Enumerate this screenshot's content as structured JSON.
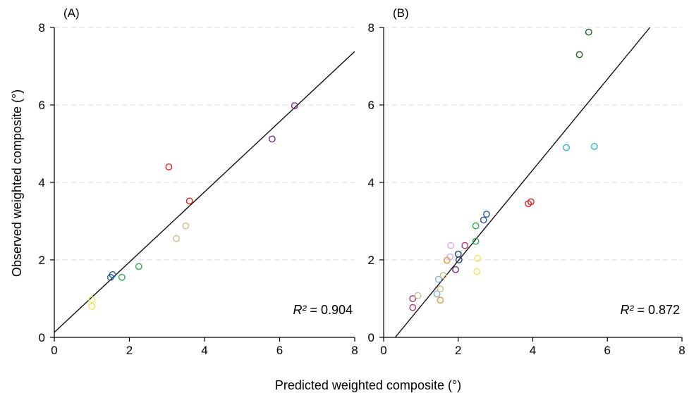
{
  "figure": {
    "xlabel": "Predicted weighted composite (°)",
    "ylabel": "Observed weighted composite (°)"
  },
  "chart_data": [
    {
      "type": "scatter",
      "panel_label": "(A)",
      "xlim": [
        0,
        8
      ],
      "ylim": [
        0,
        8
      ],
      "xticks": [
        0,
        2,
        4,
        6,
        8
      ],
      "yticks": [
        0,
        2,
        4,
        6,
        8
      ],
      "grid": "horizontal dashed",
      "annotation": {
        "prefix": "R²",
        "text": " = 0.904"
      },
      "fit_line": {
        "x": [
          0,
          8
        ],
        "y": [
          0.13,
          7.38
        ]
      },
      "points": [
        {
          "x": 1.0,
          "y": 0.97,
          "color": "#f2e35a"
        },
        {
          "x": 1.0,
          "y": 0.8,
          "color": "#f2e35a"
        },
        {
          "x": 1.5,
          "y": 1.55,
          "color": "#2a5aa8"
        },
        {
          "x": 1.55,
          "y": 1.62,
          "color": "#2a5aa8"
        },
        {
          "x": 1.8,
          "y": 1.55,
          "color": "#2ea84a"
        },
        {
          "x": 2.25,
          "y": 1.83,
          "color": "#2ea84a"
        },
        {
          "x": 3.05,
          "y": 4.4,
          "color": "#e02020"
        },
        {
          "x": 3.25,
          "y": 2.55,
          "color": "#c9c08a"
        },
        {
          "x": 3.5,
          "y": 2.88,
          "color": "#c9c08a"
        },
        {
          "x": 3.6,
          "y": 3.52,
          "color": "#e02020"
        },
        {
          "x": 5.8,
          "y": 5.12,
          "color": "#7b2a8e"
        },
        {
          "x": 6.4,
          "y": 5.98,
          "color": "#7b2a8e"
        }
      ]
    },
    {
      "type": "scatter",
      "panel_label": "(B)",
      "xlim": [
        0,
        8
      ],
      "ylim": [
        0,
        8
      ],
      "xticks": [
        0,
        2,
        4,
        6,
        8
      ],
      "yticks": [
        0,
        2,
        4,
        6,
        8
      ],
      "grid": "horizontal dashed",
      "annotation": {
        "prefix": "R²",
        "text": " = 0.872"
      },
      "fit_line": {
        "x": [
          0.31,
          7.14
        ],
        "y": [
          0,
          8
        ]
      },
      "points": [
        {
          "x": 0.78,
          "y": 1.0,
          "color": "#b0306a"
        },
        {
          "x": 0.78,
          "y": 0.77,
          "color": "#b0306a"
        },
        {
          "x": 0.92,
          "y": 1.08,
          "color": "#c9c08a"
        },
        {
          "x": 1.43,
          "y": 1.12,
          "color": "#7fb3e0"
        },
        {
          "x": 1.47,
          "y": 1.5,
          "color": "#7fb3e0"
        },
        {
          "x": 1.52,
          "y": 1.25,
          "color": "#c9c08a"
        },
        {
          "x": 1.52,
          "y": 0.96,
          "color": "#e8962a"
        },
        {
          "x": 1.6,
          "y": 1.6,
          "color": "#c9c08a"
        },
        {
          "x": 1.7,
          "y": 1.99,
          "color": "#e8962a"
        },
        {
          "x": 1.78,
          "y": 2.08,
          "color": "#d7a9d9"
        },
        {
          "x": 1.8,
          "y": 2.37,
          "color": "#d7a9d9"
        },
        {
          "x": 1.93,
          "y": 1.75,
          "color": "#7b2a8e"
        },
        {
          "x": 2.0,
          "y": 2.15,
          "color": "#1a3f7a"
        },
        {
          "x": 2.02,
          "y": 2.0,
          "color": "#1a3f7a"
        },
        {
          "x": 2.18,
          "y": 2.37,
          "color": "#b0306a"
        },
        {
          "x": 2.47,
          "y": 2.88,
          "color": "#2ea84a"
        },
        {
          "x": 2.47,
          "y": 2.48,
          "color": "#2ea84a"
        },
        {
          "x": 2.5,
          "y": 1.7,
          "color": "#f2e35a"
        },
        {
          "x": 2.52,
          "y": 2.04,
          "color": "#f2e35a"
        },
        {
          "x": 2.68,
          "y": 3.03,
          "color": "#2a5aa8"
        },
        {
          "x": 2.76,
          "y": 3.18,
          "color": "#2a5aa8"
        },
        {
          "x": 3.88,
          "y": 3.45,
          "color": "#e02020"
        },
        {
          "x": 3.95,
          "y": 3.5,
          "color": "#e02020"
        },
        {
          "x": 4.9,
          "y": 4.9,
          "color": "#26bcc9"
        },
        {
          "x": 5.65,
          "y": 4.93,
          "color": "#26bcc9"
        },
        {
          "x": 5.25,
          "y": 7.3,
          "color": "#1e5e2a"
        },
        {
          "x": 5.5,
          "y": 7.88,
          "color": "#1e5e2a"
        }
      ]
    }
  ]
}
